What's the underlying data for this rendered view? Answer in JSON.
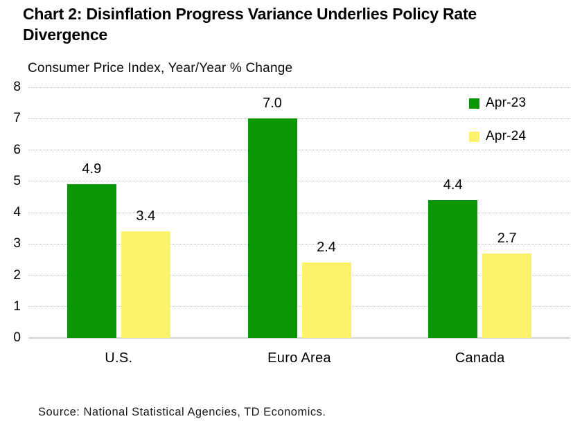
{
  "title": "Chart 2: Disinflation Progress Variance Underlies Policy Rate Divergence",
  "subtitle": "Consumer Price Index, Year/Year % Change",
  "source": "Source: National Statistical Agencies, TD Economics.",
  "colors": {
    "bar_green": "#0A9706",
    "bar_yellow": "#FCF36A",
    "gridline": "#C2C2C2",
    "baseline": "#D2D2D2",
    "text": "#000000",
    "background": "#FFFFFF"
  },
  "chart_data": {
    "type": "bar",
    "title": "Chart 2: Disinflation Progress Variance Underlies Policy Rate Divergence",
    "subtitle": "Consumer Price Index, Year/Year % Change",
    "categories": [
      "U.S.",
      "Euro Area",
      "Canada"
    ],
    "series": [
      {
        "name": "Apr-23",
        "color": "#0A9706",
        "values": [
          4.9,
          7.0,
          4.4
        ],
        "labels": [
          "4.9",
          "7.0",
          "4.4"
        ]
      },
      {
        "name": "Apr-24",
        "color": "#FCF36A",
        "values": [
          3.4,
          2.4,
          2.7
        ],
        "labels": [
          "3.4",
          "2.4",
          "2.7"
        ]
      }
    ],
    "xlabel": "",
    "ylabel": "",
    "ylim": [
      0,
      8
    ],
    "yticks": [
      "8",
      "7",
      "6",
      "5",
      "4",
      "3",
      "2",
      "1",
      "0"
    ],
    "grid": true,
    "gridline_style": "dotted",
    "legend_position": "top-right"
  }
}
